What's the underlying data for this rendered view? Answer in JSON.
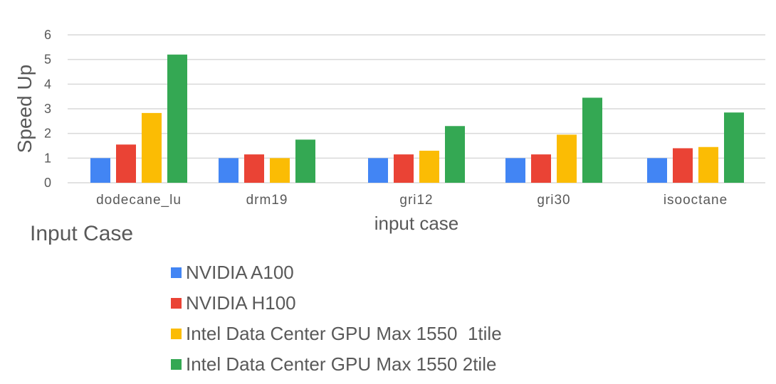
{
  "chart_data": {
    "type": "bar",
    "title": "",
    "xlabel": "input case",
    "ylabel": "Speed Up",
    "outer_label": "Input Case",
    "ylim": [
      0,
      6
    ],
    "yticks": [
      0,
      1,
      2,
      3,
      4,
      5,
      6
    ],
    "grid": true,
    "legend_position": "bottom",
    "categories": [
      "dodecane_lu",
      "drm19",
      "gri12",
      "gri30",
      "isooctane"
    ],
    "series": [
      {
        "name": "NVIDIA A100",
        "color": "#4285F4",
        "values": [
          1.0,
          1.0,
          1.0,
          1.0,
          1.0
        ]
      },
      {
        "name": "NVIDIA H100",
        "color": "#EA4335",
        "values": [
          1.55,
          1.15,
          1.15,
          1.15,
          1.4
        ]
      },
      {
        "name": "Intel Data Center GPU Max 1550  1tile",
        "color": "#FBBC04",
        "values": [
          2.83,
          1.0,
          1.3,
          1.95,
          1.45
        ]
      },
      {
        "name": "Intel Data Center GPU Max 1550 2tile",
        "color": "#34A853",
        "values": [
          5.2,
          1.75,
          2.3,
          3.45,
          2.85
        ]
      }
    ]
  }
}
